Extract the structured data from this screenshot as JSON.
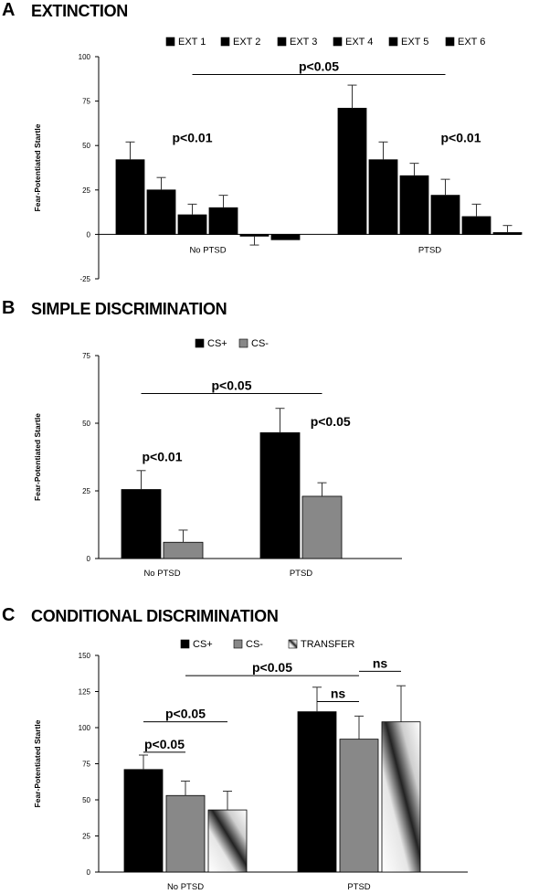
{
  "panels": [
    {
      "letter": "A",
      "title": "EXTINCTION",
      "chart_data": {
        "type": "bar",
        "ylabel": "Fear-Potentiated Startle",
        "xlabel": "",
        "ylim": [
          -25,
          100
        ],
        "yticks": [
          -25,
          0,
          25,
          50,
          75,
          100
        ],
        "categories": [
          "No PTSD",
          "PTSD"
        ],
        "legend_position": "top",
        "series": [
          {
            "name": "EXT 1",
            "values": [
              42,
              71
            ],
            "errors": [
              10,
              13
            ],
            "fill": "solid",
            "color": "#000000"
          },
          {
            "name": "EXT 2",
            "values": [
              25,
              42
            ],
            "errors": [
              7,
              10
            ],
            "fill": "solid",
            "color": "#000000"
          },
          {
            "name": "EXT 3",
            "values": [
              11,
              33
            ],
            "errors": [
              6,
              7
            ],
            "fill": "solid",
            "color": "#000000"
          },
          {
            "name": "EXT 4",
            "values": [
              15,
              22
            ],
            "errors": [
              7,
              9
            ],
            "fill": "solid",
            "color": "#000000"
          },
          {
            "name": "EXT 5",
            "values": [
              -1,
              10
            ],
            "errors": [
              5,
              7
            ],
            "fill": "solid",
            "color": "#000000"
          },
          {
            "name": "EXT 6",
            "values": [
              -3,
              1
            ],
            "errors": [
              0,
              4
            ],
            "fill": "solid",
            "color": "#000000"
          }
        ],
        "annotations": [
          {
            "text": "p<0.05",
            "type": "bracket",
            "from": {
              "cat": 0,
              "series": 2
            },
            "to": {
              "cat": 1,
              "series": 3
            },
            "y": 90
          },
          {
            "text": "p<0.01",
            "type": "label",
            "cat": 0,
            "series": 2.0,
            "y": 52
          },
          {
            "text": "p<0.01",
            "type": "label",
            "cat": 1,
            "series": 3.5,
            "y": 52
          }
        ]
      }
    },
    {
      "letter": "B",
      "title": "SIMPLE DISCRIMINATION",
      "chart_data": {
        "type": "bar",
        "ylabel": "Fear-Potentiated Startle",
        "xlabel": "",
        "ylim": [
          0,
          75
        ],
        "yticks": [
          0,
          25,
          50,
          75
        ],
        "categories": [
          "No PTSD",
          "PTSD"
        ],
        "legend_position": "top",
        "series": [
          {
            "name": "CS+",
            "values": [
              25.5,
              46.5
            ],
            "errors": [
              7,
              9
            ],
            "fill": "solid",
            "color": "#000000"
          },
          {
            "name": "CS-",
            "values": [
              6,
              23
            ],
            "errors": [
              4.5,
              5
            ],
            "fill": "solid",
            "color": "#888888"
          }
        ],
        "annotations": [
          {
            "text": "p<0.05",
            "type": "bracket",
            "from": {
              "cat": 0,
              "series": 0
            },
            "to": {
              "cat": 1,
              "series": 1
            },
            "y": 61
          },
          {
            "text": "p<0.01",
            "type": "label",
            "cat": 0,
            "series": 0.5,
            "y": 36
          },
          {
            "text": "p<0.05",
            "type": "label",
            "cat": 1,
            "series": 1.2,
            "y": 49
          }
        ]
      }
    },
    {
      "letter": "C",
      "title": "CONDITIONAL DISCRIMINATION",
      "chart_data": {
        "type": "bar",
        "ylabel": "Fear-Potentiated Startle",
        "xlabel": "",
        "ylim": [
          0,
          150
        ],
        "yticks": [
          0,
          25,
          50,
          75,
          100,
          125,
          150
        ],
        "categories": [
          "No PTSD",
          "PTSD"
        ],
        "legend_position": "top",
        "series": [
          {
            "name": "CS+",
            "values": [
              71,
              111
            ],
            "errors": [
              10,
              17
            ],
            "fill": "solid",
            "color": "#000000"
          },
          {
            "name": "CS-",
            "values": [
              53,
              92
            ],
            "errors": [
              10,
              16
            ],
            "fill": "solid",
            "color": "#888888"
          },
          {
            "name": "TRANSFER",
            "values": [
              43,
              104
            ],
            "errors": [
              13,
              25
            ],
            "fill": "gradient",
            "color": "#555555"
          }
        ],
        "annotations": [
          {
            "text": "p<0.05",
            "type": "bracket",
            "from": {
              "cat": 0,
              "series": 1
            },
            "to": {
              "cat": 1,
              "series": 1
            },
            "y": 136
          },
          {
            "text": "ns",
            "type": "bracket",
            "from": {
              "cat": 1,
              "series": 1
            },
            "to": {
              "cat": 1,
              "series": 2
            },
            "y": 139
          },
          {
            "text": "ns",
            "type": "bracket",
            "from": {
              "cat": 1,
              "series": 0
            },
            "to": {
              "cat": 1,
              "series": 1
            },
            "y": 118
          },
          {
            "text": "p<0.05",
            "type": "bracket",
            "from": {
              "cat": 0,
              "series": 0
            },
            "to": {
              "cat": 0,
              "series": 2
            },
            "y": 104
          },
          {
            "text": "p<0.05",
            "type": "bracket",
            "from": {
              "cat": 0,
              "series": 0
            },
            "to": {
              "cat": 0,
              "series": 1
            },
            "y": 83
          }
        ]
      }
    }
  ]
}
